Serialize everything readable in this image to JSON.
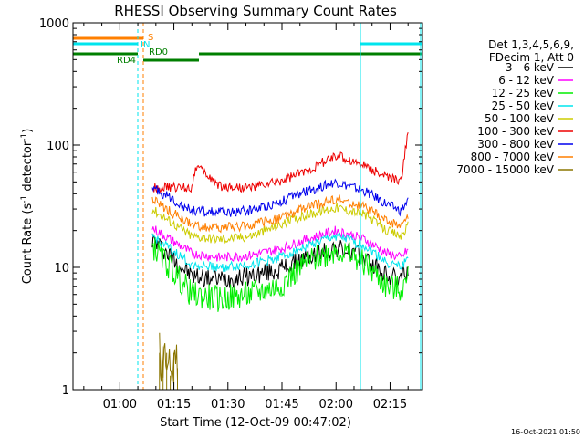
{
  "chart_data": {
    "type": "line",
    "title": "RHESSI Observing Summary Count Rates",
    "ylabel_main": "Count Rate (s",
    "ylabel_sup1": "-1",
    "ylabel_mid": " detector",
    "ylabel_sup2": "-1",
    "ylabel_end": ")",
    "xlabel": "Start Time (12-Oct-09 00:47:02)",
    "timestamp": "16-Oct-2021 01:50",
    "y_scale": "log",
    "ylim": [
      1,
      1000
    ],
    "xlim": [
      "00:47",
      "02:24"
    ],
    "x_tick_labels": [
      "01:00",
      "01:15",
      "01:30",
      "01:45",
      "02:00",
      "02:15"
    ],
    "y_tick_labels": [
      "1",
      "10",
      "100",
      "1000"
    ],
    "legend": {
      "placement": "right",
      "header": [
        "Det 1,3,4,5,6,9,",
        "FDecim 1, Att 0"
      ],
      "entries": [
        {
          "name": "3 - 6 keV",
          "color": "#000000"
        },
        {
          "name": "6 - 12 keV",
          "color": "#ff00ff"
        },
        {
          "name": "12 - 25 keV",
          "color": "#00ee00"
        },
        {
          "name": "25 - 50 keV",
          "color": "#00e5ee"
        },
        {
          "name": "50 - 100 keV",
          "color": "#cccc00"
        },
        {
          "name": "100 - 300 keV",
          "color": "#ee0000"
        },
        {
          "name": "300 - 800 keV",
          "color": "#0000ee"
        },
        {
          "name": "800 - 7000 keV",
          "color": "#ff7f00"
        },
        {
          "name": "7000 - 15000 keV",
          "color": "#8b7500"
        }
      ]
    },
    "flags": {
      "S": "S",
      "IN": "IN",
      "RD0": "RD0",
      "RD4": "RD4"
    },
    "series": [
      {
        "name": "3 - 6 keV",
        "color": "#000000",
        "x": [
          "01:09",
          "01:20",
          "01:28",
          "01:36",
          "01:44",
          "01:52",
          "02:00",
          "02:08",
          "02:14",
          "02:18",
          "02:20"
        ],
        "y": [
          17,
          8.5,
          8,
          8.5,
          9.5,
          12,
          14.5,
          12,
          8.5,
          8,
          10
        ]
      },
      {
        "name": "6 - 12 keV",
        "color": "#ff00ff",
        "x": [
          "01:09",
          "01:20",
          "01:28",
          "01:36",
          "01:44",
          "01:52",
          "02:00",
          "02:08",
          "02:14",
          "02:18",
          "02:20"
        ],
        "y": [
          21,
          13,
          12,
          12.5,
          14,
          17,
          20,
          17,
          13,
          12,
          14
        ]
      },
      {
        "name": "12 - 25 keV",
        "color": "#00ee00",
        "x": [
          "01:09",
          "01:20",
          "01:28",
          "01:36",
          "01:44",
          "01:52",
          "02:00",
          "02:08",
          "02:14",
          "02:18",
          "02:20"
        ],
        "y": [
          15,
          6,
          5.5,
          6,
          7,
          11,
          14,
          11,
          7,
          6.5,
          8
        ]
      },
      {
        "name": "25 - 50 keV",
        "color": "#00e5ee",
        "x": [
          "01:09",
          "01:20",
          "01:28",
          "01:36",
          "01:44",
          "01:52",
          "02:00",
          "02:08",
          "02:14",
          "02:18",
          "02:20"
        ],
        "y": [
          18,
          10.5,
          10,
          10.5,
          12,
          15,
          18,
          15,
          11,
          10,
          12
        ]
      },
      {
        "name": "50 - 100 keV",
        "color": "#cccc00",
        "x": [
          "01:09",
          "01:20",
          "01:28",
          "01:36",
          "01:44",
          "01:52",
          "02:00",
          "02:08",
          "02:14",
          "02:18",
          "02:20"
        ],
        "y": [
          30,
          18,
          17,
          18,
          22,
          27,
          31,
          27,
          20,
          18,
          22
        ]
      },
      {
        "name": "100 - 300 keV",
        "color": "#ee0000",
        "x": [
          "01:09",
          "01:20",
          "01:21",
          "01:28",
          "01:36",
          "01:44",
          "01:52",
          "02:00",
          "02:08",
          "02:14",
          "02:18",
          "02:20"
        ],
        "y": [
          45,
          45,
          68,
          46,
          45,
          50,
          62,
          82,
          68,
          55,
          50,
          130
        ]
      },
      {
        "name": "300 - 800 keV",
        "color": "#0000ee",
        "x": [
          "01:09",
          "01:20",
          "01:28",
          "01:36",
          "01:44",
          "01:52",
          "02:00",
          "02:08",
          "02:14",
          "02:18",
          "02:20"
        ],
        "y": [
          45,
          29,
          28,
          29,
          34,
          42,
          50,
          42,
          33,
          29,
          35
        ]
      },
      {
        "name": "800 - 7000 keV",
        "color": "#ff7f00",
        "x": [
          "01:09",
          "01:20",
          "01:28",
          "01:36",
          "01:44",
          "01:52",
          "02:00",
          "02:08",
          "02:14",
          "02:18",
          "02:20"
        ],
        "y": [
          36,
          22,
          21,
          22,
          25,
          31,
          36,
          31,
          24,
          22,
          26
        ]
      },
      {
        "name": "7000 - 15000 keV",
        "color": "#8b7500",
        "x": [
          "01:11",
          "01:12",
          "01:13",
          "01:14",
          "01:15",
          "01:16"
        ],
        "y": [
          2,
          1.5,
          2,
          1.3,
          2,
          1.5
        ]
      }
    ]
  }
}
